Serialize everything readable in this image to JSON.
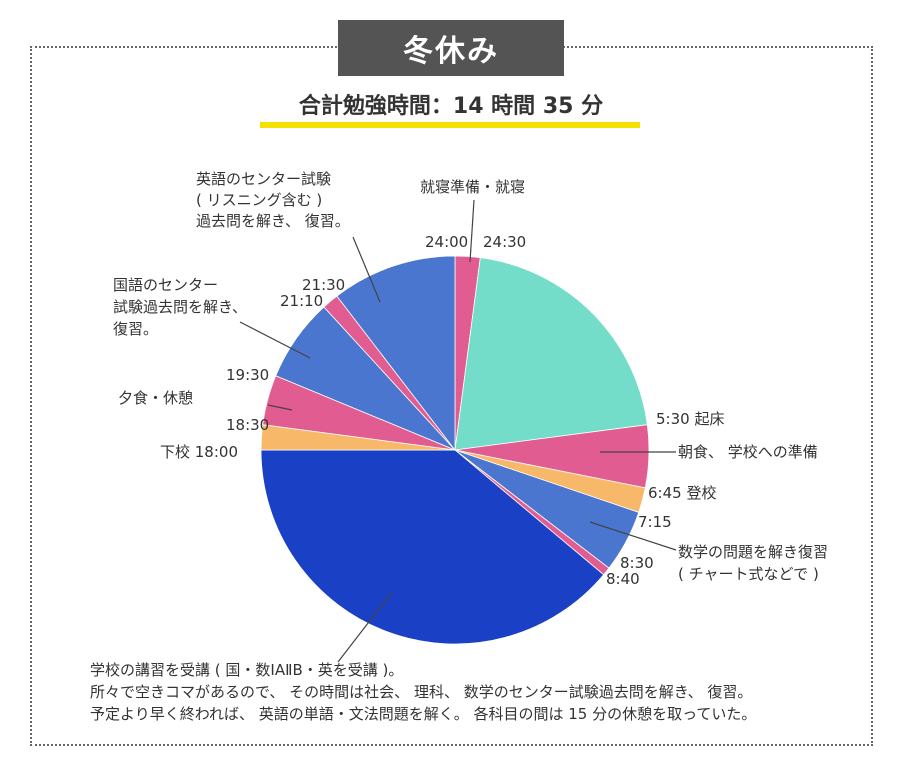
{
  "header": {
    "banner": "冬休み",
    "subtitle": "合計勉強時間：14 時間 35 分"
  },
  "colors": {
    "pink": "#e05c91",
    "teal": "#74ddc9",
    "orange": "#f8b86a",
    "blue": "#4a76cf",
    "royal": "#1a40c6"
  },
  "chart_data": {
    "type": "pie",
    "title": "冬休み",
    "subtitle": "合計勉強時間：14 時間 35 分",
    "unit": "minutes",
    "slices": [
      {
        "label": "就寝準備・就寝",
        "start": "24:00",
        "end": "24:30",
        "value": 30,
        "color": "#e05c91"
      },
      {
        "label": "",
        "start": "24:30",
        "end": "5:30",
        "value": 300,
        "color": "#74ddc9"
      },
      {
        "label": "5:30 起床",
        "start": "5:30",
        "end": "5:30",
        "value": 0,
        "color": "#e05c91"
      },
      {
        "label": "朝食、 学校への準備",
        "start": "5:30",
        "end": "6:45",
        "value": 75,
        "color": "#e05c91"
      },
      {
        "label": "6:45 登校",
        "start": "6:45",
        "end": "7:15",
        "value": 30,
        "color": "#f8b86a"
      },
      {
        "label": "数学の問題を解き復習 ( チャート式などで )",
        "start": "7:15",
        "end": "8:30",
        "value": 75,
        "color": "#4a76cf"
      },
      {
        "label": "",
        "start": "8:30",
        "end": "8:40",
        "value": 10,
        "color": "#e05c91"
      },
      {
        "label": "学校の講習を受講 ( 国・数ⅠAⅡB・英を受講 )。",
        "start": "8:40",
        "end": "18:00",
        "value": 560,
        "color": "#1a40c6"
      },
      {
        "label": "下校 18:00",
        "start": "18:00",
        "end": "18:30",
        "value": 30,
        "color": "#f8b86a"
      },
      {
        "label": "夕食・休憩",
        "start": "18:30",
        "end": "19:30",
        "value": 60,
        "color": "#e05c91"
      },
      {
        "label": "国語のセンター試験過去問を解き、復習。",
        "start": "19:30",
        "end": "21:10",
        "value": 100,
        "color": "#4a76cf"
      },
      {
        "label": "",
        "start": "21:10",
        "end": "21:30",
        "value": 20,
        "color": "#e05c91"
      },
      {
        "label": "英語のセンター試験 ( リスニング含む ) 過去問を解き、 復習。",
        "start": "21:30",
        "end": "24:00",
        "value": 150,
        "color": "#4a76cf"
      }
    ],
    "time_labels": [
      "24:00",
      "24:30",
      "5:30",
      "6:45",
      "7:15",
      "8:30",
      "8:40",
      "18:00",
      "18:30",
      "19:30",
      "21:10",
      "21:30"
    ],
    "annotations": {
      "wake": "5:30  起床",
      "breakfast": "朝食、 学校への準備",
      "commute": "6:45 登校",
      "t715": "7:15",
      "math_line1": "数学の問題を解き復習",
      "math_line2": "( チャート式などで )",
      "t830": "8:30",
      "t840": "8:40",
      "school_line1": "学校の講習を受講 ( 国・数ⅠAⅡB・英を受講 )。",
      "school_line2": "所々で空きコマがあるので、 その時間は社会、 理科、 数学のセンター試験過去問を解き、 復習。",
      "school_line3": "予定より早く終われば、 英語の単語・文法問題を解く。 各科目の間は 15 分の休憩を取っていた。",
      "home": "下校  18:00",
      "t1830": "18:30",
      "dinner": "夕食・休憩",
      "t1930": "19:30",
      "jp_line1": "国語のセンター",
      "jp_line2": "試験過去問を解き、",
      "jp_line3": "復習。",
      "t2110": "21:10",
      "t2130": "21:30",
      "en_line1": "英語のセンター試験",
      "en_line2": "( リスニング含む )",
      "en_line3": "過去問を解き、 復習。",
      "t2400": "24:00",
      "t2430": "24:30",
      "sleep": "就寝準備・就寝"
    }
  }
}
